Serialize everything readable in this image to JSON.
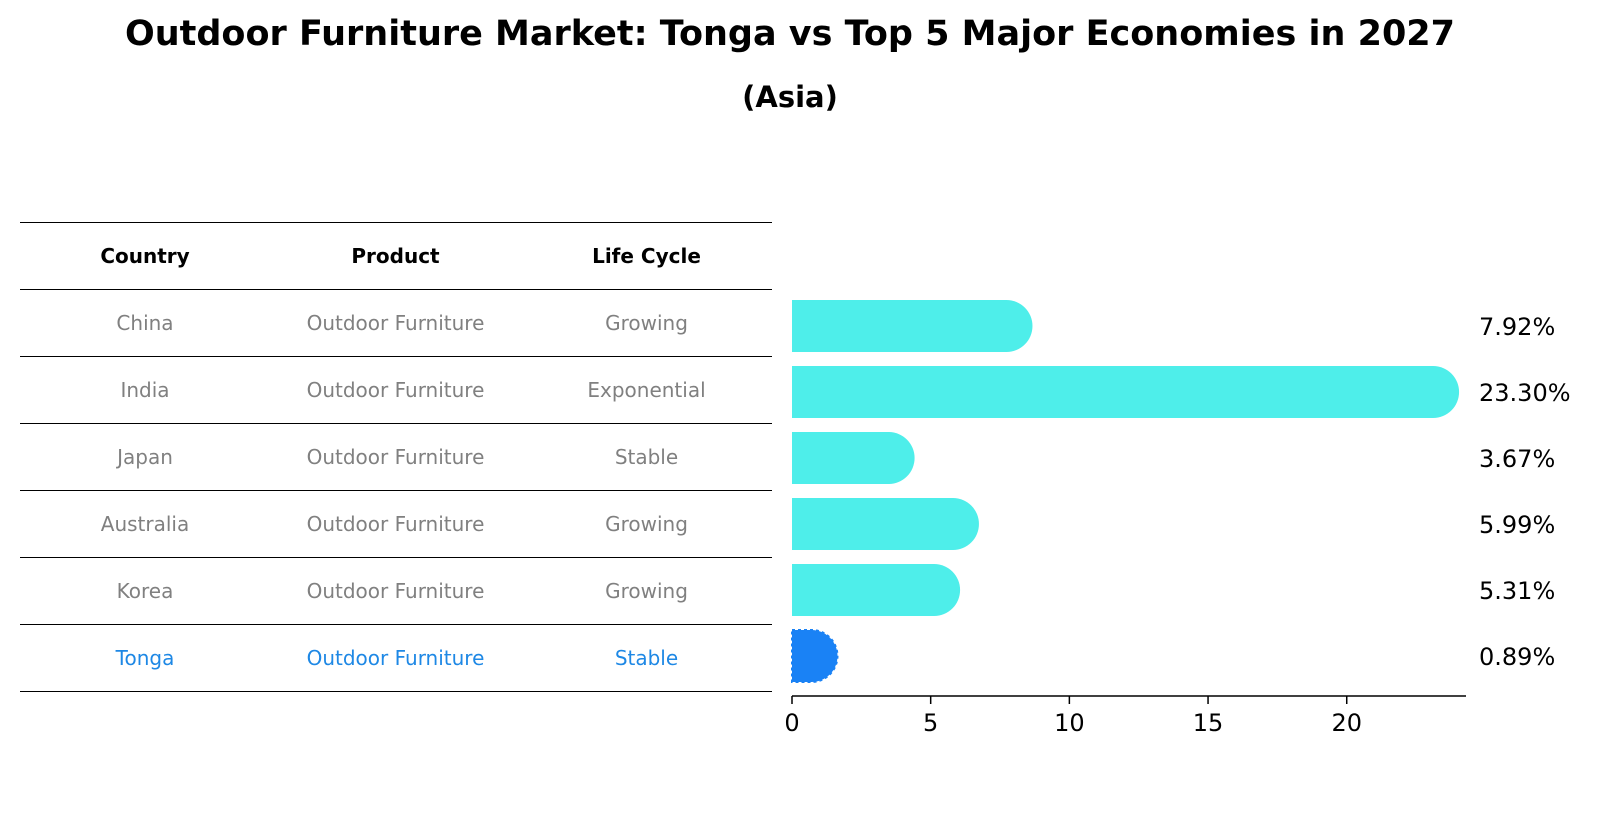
{
  "chart_data": {
    "type": "bar",
    "orientation": "horizontal",
    "title": "Outdoor Furniture Market: Tonga vs Top 5 Major Economies in 2027",
    "subtitle": "(Asia)",
    "categories": [
      "China",
      "India",
      "Japan",
      "Australia",
      "Korea",
      "Tonga"
    ],
    "values": [
      7.92,
      23.3,
      3.67,
      5.99,
      5.31,
      0.89
    ],
    "value_labels": [
      "7.92%",
      "23.30%",
      "3.67%",
      "5.99%",
      "5.31%",
      "0.89%"
    ],
    "highlight": "Tonga",
    "colors": {
      "default": "#4eeeea",
      "highlight": "#1a82f5"
    },
    "xlim": [
      0,
      24.3
    ],
    "xticks": [
      0,
      5,
      10,
      15,
      20
    ],
    "xlabel": "",
    "ylabel": ""
  },
  "table": {
    "headers": [
      "Country",
      "Product",
      "Life Cycle"
    ],
    "rows": [
      [
        "China",
        "Outdoor Furniture",
        "Growing"
      ],
      [
        "India",
        "Outdoor Furniture",
        "Exponential"
      ],
      [
        "Japan",
        "Outdoor Furniture",
        "Stable"
      ],
      [
        "Australia",
        "Outdoor Furniture",
        "Growing"
      ],
      [
        "Korea",
        "Outdoor Furniture",
        "Growing"
      ],
      [
        "Tonga",
        "Outdoor Furniture",
        "Stable"
      ]
    ],
    "highlight_color": "#1e88e5"
  }
}
